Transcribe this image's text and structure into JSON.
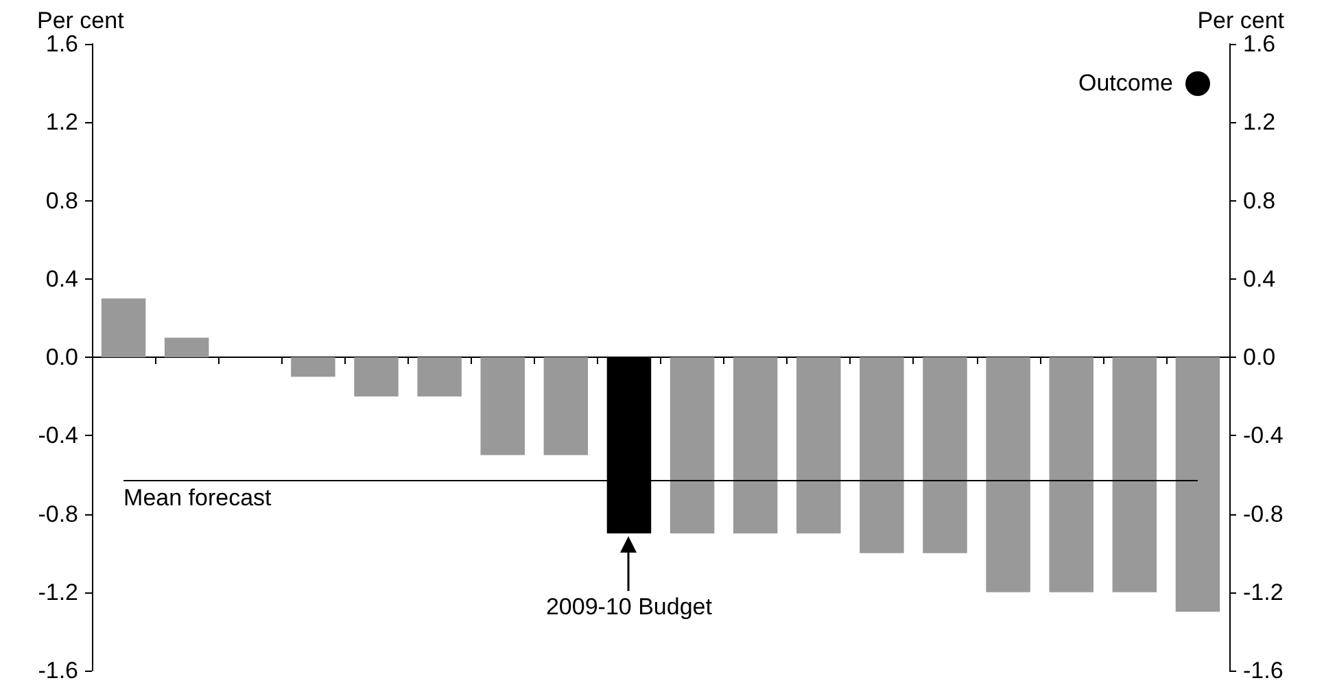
{
  "chart_data": {
    "type": "bar",
    "ylabel": "Per cent",
    "y2label": "Per cent",
    "categories": [
      null,
      null,
      null,
      null,
      null,
      null,
      null,
      null,
      null,
      null,
      null,
      null,
      null,
      null,
      null,
      null,
      null,
      null
    ],
    "values": [
      0.3,
      0.1,
      0,
      -0.1,
      -0.2,
      -0.2,
      -0.5,
      -0.5,
      -0.9,
      -0.9,
      -0.9,
      -0.9,
      -1.0,
      -1.0,
      -1.2,
      -1.2,
      -1.2,
      -1.3
    ],
    "colors": [
      "#999999",
      "#999999",
      "#999999",
      "#999999",
      "#999999",
      "#999999",
      "#999999",
      "#999999",
      "#000000",
      "#999999",
      "#999999",
      "#999999",
      "#999999",
      "#999999",
      "#999999",
      "#999999",
      "#999999",
      "#999999"
    ],
    "ylim": [
      -1.6,
      1.6
    ],
    "yticks": [
      -1.6,
      -1.2,
      -0.8,
      -0.4,
      {
        "value": 0,
        "label": "0.0"
      },
      0.4,
      0.8,
      1.2,
      1.6
    ],
    "y2lim": [
      -1.6,
      1.6
    ],
    "y2ticks": [
      -1.6,
      -1.2,
      -0.8,
      -0.4,
      {
        "value": 0,
        "label": "0.0"
      },
      0.4,
      0.8,
      1.2,
      1.6
    ],
    "ref_lines": [
      {
        "axis": "y",
        "value": -0.63,
        "label": "Mean forecast",
        "color": "#000000"
      }
    ],
    "annotations": [
      "Outcome",
      {
        "text": "2009-10 Budget",
        "y": -0.9
      }
    ]
  }
}
